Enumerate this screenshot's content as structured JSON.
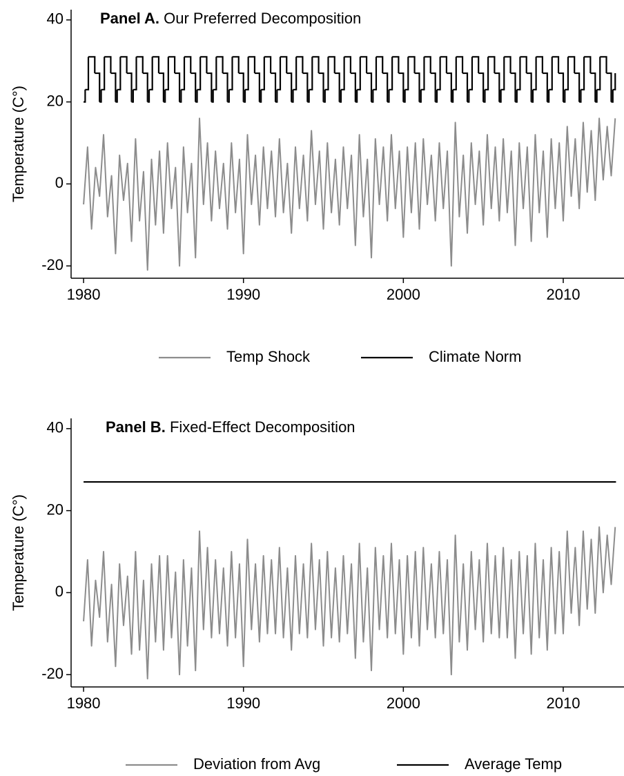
{
  "chart_data": [
    {
      "type": "line",
      "panel": "Panel A.",
      "title": "Our Preferred Decomposition",
      "y_label": "Temperature (C°)",
      "xlim": [
        1979.22,
        2013.8
      ],
      "xticks": [
        1980,
        1990,
        2000,
        2010
      ],
      "ylim": [
        -23,
        42.5
      ],
      "yticks": [
        -20,
        0,
        20,
        40
      ],
      "x": [
        1980,
        1980.25,
        1980.5,
        1980.75,
        1981,
        1981.25,
        1981.5,
        1981.75,
        1982,
        1982.25,
        1982.5,
        1982.75,
        1983,
        1983.25,
        1983.5,
        1983.75,
        1984,
        1984.25,
        1984.5,
        1984.75,
        1985,
        1985.25,
        1985.5,
        1985.75,
        1986,
        1986.25,
        1986.5,
        1986.75,
        1987,
        1987.25,
        1987.5,
        1987.75,
        1988,
        1988.25,
        1988.5,
        1988.75,
        1989,
        1989.25,
        1989.5,
        1989.75,
        1990,
        1990.25,
        1990.5,
        1990.75,
        1991,
        1991.25,
        1991.5,
        1991.75,
        1992,
        1992.25,
        1992.5,
        1992.75,
        1993,
        1993.25,
        1993.5,
        1993.75,
        1994,
        1994.25,
        1994.5,
        1994.75,
        1995,
        1995.25,
        1995.5,
        1995.75,
        1996,
        1996.25,
        1996.5,
        1996.75,
        1997,
        1997.25,
        1997.5,
        1997.75,
        1998,
        1998.25,
        1998.5,
        1998.75,
        1999,
        1999.25,
        1999.5,
        1999.75,
        2000,
        2000.25,
        2000.5,
        2000.75,
        2001,
        2001.25,
        2001.5,
        2001.75,
        2002,
        2002.25,
        2002.5,
        2002.75,
        2003,
        2003.25,
        2003.5,
        2003.75,
        2004,
        2004.25,
        2004.5,
        2004.75,
        2005,
        2005.25,
        2005.5,
        2005.75,
        2006,
        2006.25,
        2006.5,
        2006.75,
        2007,
        2007.25,
        2007.5,
        2007.75,
        2008,
        2008.25,
        2008.5,
        2008.75,
        2009,
        2009.25,
        2009.5,
        2009.75,
        2010,
        2010.25,
        2010.5,
        2010.75,
        2011,
        2011.25,
        2011.5,
        2011.75,
        2012,
        2012.25,
        2012.5,
        2012.75,
        2013,
        2013.25
      ],
      "series": [
        {
          "name": "Temp Shock",
          "color": "#8c8c8c",
          "values": [
            -5,
            9,
            -11,
            4,
            -3,
            12,
            -8,
            2,
            -17,
            7,
            -4,
            5,
            -14,
            11,
            -9,
            3,
            -21,
            6,
            -10,
            8,
            -12,
            10,
            -6,
            4,
            -20,
            9,
            -7,
            5,
            -18,
            16,
            -5,
            10,
            -9,
            8,
            -6,
            5,
            -11,
            10,
            -7,
            6,
            -17,
            12,
            -5,
            7,
            -10,
            9,
            -6,
            8,
            -8,
            11,
            -7,
            5,
            -12,
            9,
            -6,
            7,
            -9,
            13,
            -5,
            8,
            -11,
            10,
            -7,
            6,
            -10,
            9,
            -6,
            7,
            -15,
            12,
            -8,
            6,
            -18,
            11,
            -5,
            9,
            -9,
            12,
            -6,
            8,
            -13,
            9,
            -7,
            10,
            -11,
            11,
            -5,
            7,
            -9,
            10,
            -6,
            8,
            -20,
            15,
            -8,
            7,
            -12,
            10,
            -5,
            8,
            -10,
            12,
            -6,
            9,
            -9,
            11,
            -7,
            8,
            -15,
            10,
            -6,
            9,
            -14,
            12,
            -7,
            8,
            -13,
            11,
            -6,
            10,
            -9,
            14,
            -3,
            11,
            -6,
            15,
            -2,
            13,
            -4,
            16,
            1,
            14,
            2,
            16
          ]
        },
        {
          "name": "Climate Norm",
          "color": "#000000",
          "step": true,
          "x": [
            1980,
            1980.1,
            1980.3,
            1980.7,
            1981,
            1981.1,
            1981.3,
            1981.7,
            1982,
            1982.1,
            1982.3,
            1982.7,
            1983,
            1983.1,
            1983.3,
            1983.7,
            1984,
            1984.1,
            1984.3,
            1984.7,
            1985,
            1985.1,
            1985.3,
            1985.7,
            1986,
            1986.1,
            1986.3,
            1986.7,
            1987,
            1987.1,
            1987.3,
            1987.7,
            1988,
            1988.1,
            1988.3,
            1988.7,
            1989,
            1989.1,
            1989.3,
            1989.7,
            1990,
            1990.1,
            1990.3,
            1990.7,
            1991,
            1991.1,
            1991.3,
            1991.7,
            1992,
            1992.1,
            1992.3,
            1992.7,
            1993,
            1993.1,
            1993.3,
            1993.7,
            1994,
            1994.1,
            1994.3,
            1994.7,
            1995,
            1995.1,
            1995.3,
            1995.7,
            1996,
            1996.1,
            1996.3,
            1996.7,
            1997,
            1997.1,
            1997.3,
            1997.7,
            1998,
            1998.1,
            1998.3,
            1998.7,
            1999,
            1999.1,
            1999.3,
            1999.7,
            2000,
            2000.1,
            2000.3,
            2000.7,
            2001,
            2001.1,
            2001.3,
            2001.7,
            2002,
            2002.1,
            2002.3,
            2002.7,
            2003,
            2003.1,
            2003.3,
            2003.7,
            2004,
            2004.1,
            2004.3,
            2004.7,
            2005,
            2005.1,
            2005.3,
            2005.7,
            2006,
            2006.1,
            2006.3,
            2006.7,
            2007,
            2007.1,
            2007.3,
            2007.7,
            2008,
            2008.1,
            2008.3,
            2008.7,
            2009,
            2009.1,
            2009.3,
            2009.7,
            2010,
            2010.1,
            2010.3,
            2010.7,
            2011,
            2011.1,
            2011.3,
            2011.7,
            2012,
            2012.1,
            2012.3,
            2012.7,
            2013,
            2013.1,
            2013.25
          ],
          "values": [
            20,
            23,
            31,
            27,
            20,
            23,
            31,
            27,
            20,
            23,
            31,
            27,
            20,
            23,
            31,
            27,
            20,
            23,
            31,
            27,
            20,
            23,
            31,
            27,
            20,
            23,
            31,
            27,
            20,
            23,
            31,
            27,
            20,
            23,
            31,
            27,
            20,
            23,
            31,
            27,
            20,
            23,
            31,
            27,
            20,
            23,
            31,
            27,
            20,
            23,
            31,
            27,
            20,
            23,
            31,
            27,
            20,
            23,
            31,
            27,
            20,
            23,
            31,
            27,
            20,
            23,
            31,
            27,
            20,
            23,
            31,
            27,
            20,
            23,
            31,
            27,
            20,
            23,
            31,
            27,
            20,
            23,
            31,
            27,
            20,
            23,
            31,
            27,
            20,
            23,
            31,
            27,
            20,
            23,
            31,
            27,
            20,
            23,
            31,
            27,
            20,
            23,
            31,
            27,
            20,
            23,
            31,
            27,
            20,
            23,
            31,
            27,
            20,
            23,
            31,
            27,
            20,
            23,
            31,
            27,
            20,
            23,
            31,
            27,
            20,
            23,
            31,
            27,
            20,
            23,
            31,
            27,
            20,
            23,
            27
          ]
        }
      ]
    },
    {
      "type": "line",
      "panel": "Panel B.",
      "title": "Fixed-Effect Decomposition",
      "y_label": "Temperature (C°)",
      "xlim": [
        1979.22,
        2013.8
      ],
      "xticks": [
        1980,
        1990,
        2000,
        2010
      ],
      "ylim": [
        -23,
        42.5
      ],
      "yticks": [
        -20,
        0,
        20,
        40
      ],
      "x": [
        1980,
        1980.25,
        1980.5,
        1980.75,
        1981,
        1981.25,
        1981.5,
        1981.75,
        1982,
        1982.25,
        1982.5,
        1982.75,
        1983,
        1983.25,
        1983.5,
        1983.75,
        1984,
        1984.25,
        1984.5,
        1984.75,
        1985,
        1985.25,
        1985.5,
        1985.75,
        1986,
        1986.25,
        1986.5,
        1986.75,
        1987,
        1987.25,
        1987.5,
        1987.75,
        1988,
        1988.25,
        1988.5,
        1988.75,
        1989,
        1989.25,
        1989.5,
        1989.75,
        1990,
        1990.25,
        1990.5,
        1990.75,
        1991,
        1991.25,
        1991.5,
        1991.75,
        1992,
        1992.25,
        1992.5,
        1992.75,
        1993,
        1993.25,
        1993.5,
        1993.75,
        1994,
        1994.25,
        1994.5,
        1994.75,
        1995,
        1995.25,
        1995.5,
        1995.75,
        1996,
        1996.25,
        1996.5,
        1996.75,
        1997,
        1997.25,
        1997.5,
        1997.75,
        1998,
        1998.25,
        1998.5,
        1998.75,
        1999,
        1999.25,
        1999.5,
        1999.75,
        2000,
        2000.25,
        2000.5,
        2000.75,
        2001,
        2001.25,
        2001.5,
        2001.75,
        2002,
        2002.25,
        2002.5,
        2002.75,
        2003,
        2003.25,
        2003.5,
        2003.75,
        2004,
        2004.25,
        2004.5,
        2004.75,
        2005,
        2005.25,
        2005.5,
        2005.75,
        2006,
        2006.25,
        2006.5,
        2006.75,
        2007,
        2007.25,
        2007.5,
        2007.75,
        2008,
        2008.25,
        2008.5,
        2008.75,
        2009,
        2009.25,
        2009.5,
        2009.75,
        2010,
        2010.25,
        2010.5,
        2010.75,
        2011,
        2011.25,
        2011.5,
        2011.75,
        2012,
        2012.25,
        2012.5,
        2012.75,
        2013,
        2013.25
      ],
      "series": [
        {
          "name": "Deviation from Avg",
          "color": "#8c8c8c",
          "values": [
            -7,
            8,
            -13,
            3,
            -6,
            10,
            -12,
            2,
            -18,
            7,
            -8,
            4,
            -15,
            10,
            -14,
            3,
            -21,
            7,
            -12,
            9,
            -14,
            9,
            -11,
            5,
            -20,
            8,
            -13,
            6,
            -19,
            15,
            -9,
            11,
            -11,
            8,
            -10,
            6,
            -13,
            10,
            -11,
            7,
            -18,
            13,
            -9,
            7,
            -12,
            9,
            -10,
            8,
            -10,
            11,
            -11,
            6,
            -14,
            9,
            -10,
            7,
            -11,
            12,
            -9,
            8,
            -13,
            10,
            -11,
            6,
            -12,
            9,
            -10,
            7,
            -16,
            12,
            -12,
            6,
            -19,
            11,
            -9,
            9,
            -11,
            12,
            -10,
            8,
            -15,
            9,
            -11,
            10,
            -13,
            11,
            -9,
            7,
            -11,
            10,
            -10,
            8,
            -20,
            14,
            -12,
            7,
            -14,
            10,
            -9,
            8,
            -12,
            12,
            -10,
            9,
            -11,
            11,
            -11,
            8,
            -16,
            10,
            -10,
            9,
            -15,
            12,
            -11,
            8,
            -14,
            11,
            -10,
            10,
            -10,
            15,
            -5,
            11,
            -8,
            15,
            -4,
            13,
            -5,
            16,
            0,
            14,
            2,
            16
          ]
        },
        {
          "name": "Average Temp",
          "color": "#000000",
          "x": [
            1980,
            2013.3
          ],
          "values": [
            27,
            27
          ]
        }
      ]
    }
  ]
}
